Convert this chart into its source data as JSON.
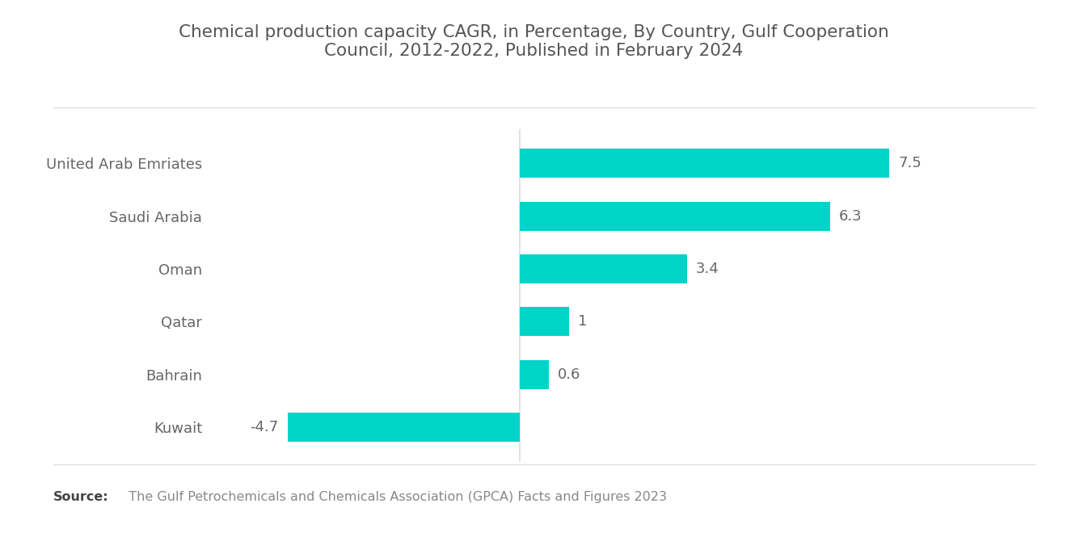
{
  "title": "Chemical production capacity CAGR, in Percentage, By Country, Gulf Cooperation\nCouncil, 2012-2022, Published in February 2024",
  "title_fontsize": 15.5,
  "title_color": "#555555",
  "categories": [
    "United Arab Emriates",
    "Saudi Arabia",
    "Oman",
    "Qatar",
    "Bahrain",
    "Kuwait"
  ],
  "values": [
    7.5,
    6.3,
    3.4,
    1.0,
    0.6,
    -4.7
  ],
  "bar_color": "#00D4C8",
  "label_color": "#666666",
  "value_color": "#666666",
  "background_color": "#ffffff",
  "source_bold": "Source:",
  "source_text": "  The Gulf Petrochemicals and Chemicals Association (GPCA) Facts and Figures 2023",
  "source_fontsize": 11.5,
  "source_color": "#888888",
  "source_bold_color": "#444444",
  "xlim": [
    -6.2,
    9.8
  ],
  "bar_height": 0.55,
  "label_fontsize": 13,
  "value_fontsize": 13,
  "separator_color": "#dddddd"
}
